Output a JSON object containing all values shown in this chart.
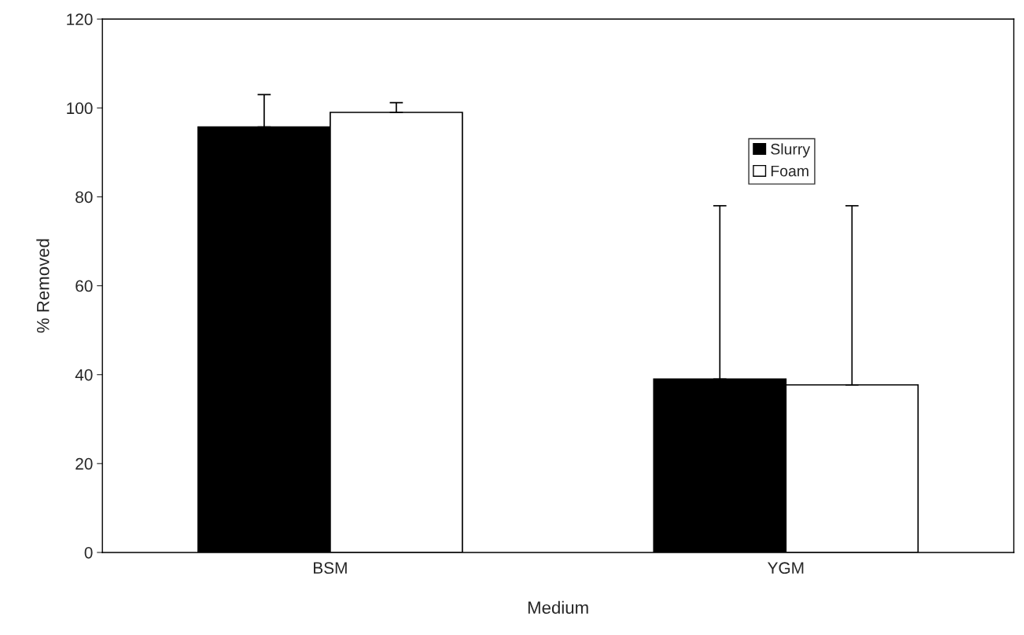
{
  "chart_data": {
    "type": "bar",
    "xlabel": "Medium",
    "ylabel": "% Removed",
    "categories": [
      "BSM",
      "YGM"
    ],
    "series": [
      {
        "name": "Slurry",
        "color": "#000000",
        "values": [
          95.7,
          39.0
        ],
        "errors": [
          [
            95.7,
            103.0
          ],
          [
            39.0,
            78.0
          ]
        ]
      },
      {
        "name": "Foam",
        "color": "#ffffff",
        "values": [
          99.0,
          37.7
        ],
        "errors": [
          [
            99.0,
            101.2
          ],
          [
            37.7,
            78.0
          ]
        ]
      }
    ],
    "ylim": [
      0,
      120
    ],
    "yticks": [
      0,
      20,
      40,
      60,
      80,
      100,
      120
    ],
    "grid": false,
    "legend": "top right"
  }
}
